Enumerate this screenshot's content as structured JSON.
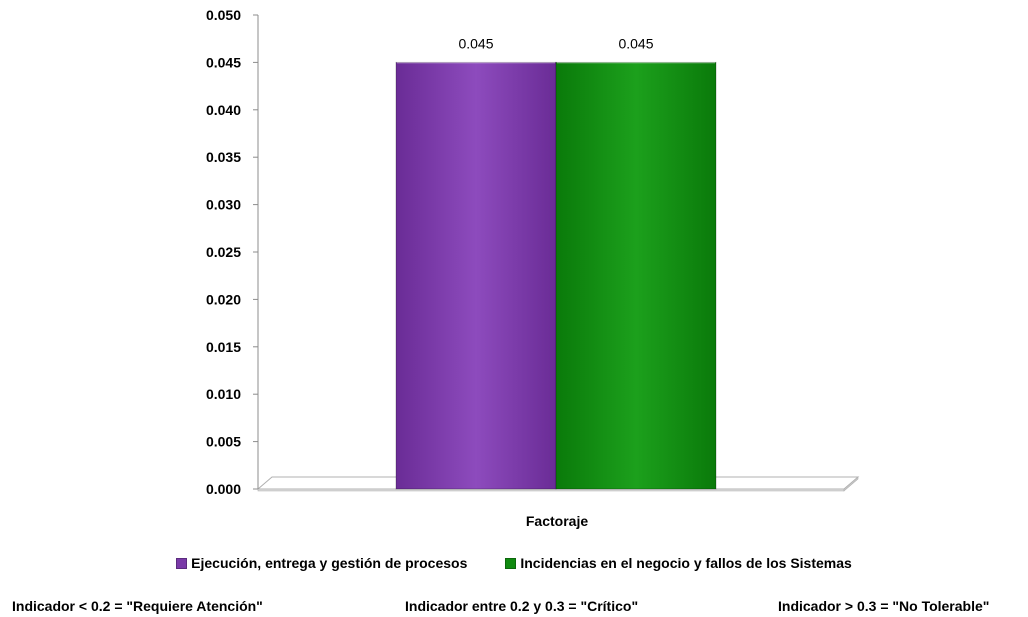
{
  "chart_data": {
    "type": "bar",
    "title": "",
    "xlabel": "",
    "ylabel": "",
    "categories": [
      "Factoraje"
    ],
    "series": [
      {
        "name": "Ejecución, entrega y gestión de procesos",
        "values": [
          0.045
        ],
        "color": "#7a3aa8"
      },
      {
        "name": "Incidencias en el negocio y fallos de los Sistemas",
        "values": [
          0.045
        ],
        "color": "#108a10"
      }
    ],
    "data_labels": [
      "0.045",
      "0.045"
    ],
    "ylim": [
      0,
      0.05
    ],
    "yticks": [
      "0.000",
      "0.005",
      "0.010",
      "0.015",
      "0.020",
      "0.025",
      "0.030",
      "0.035",
      "0.040",
      "0.045",
      "0.050"
    ],
    "grid": false,
    "legend_position": "bottom",
    "style": "3d"
  },
  "indicators": [
    "Indicador < 0.2  = \"Requiere Atención\"",
    "Indicador entre 0.2 y 0.3 = \"Crítico\"",
    "Indicador > 0.3 = \"No Tolerable\""
  ]
}
